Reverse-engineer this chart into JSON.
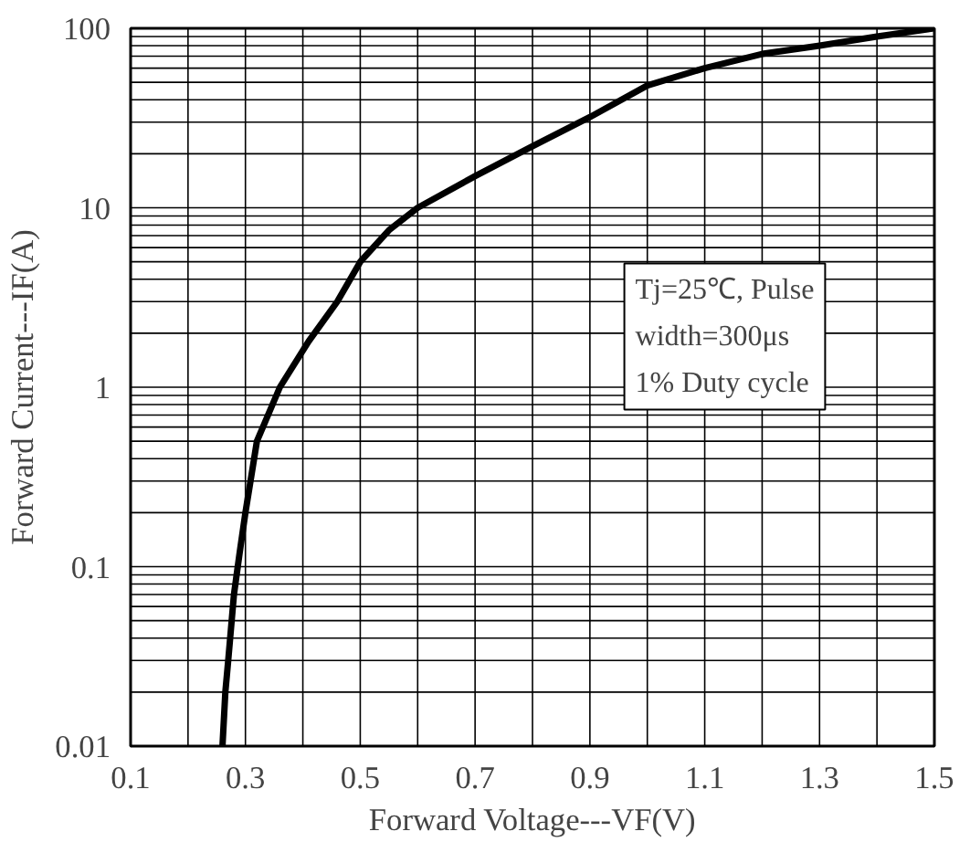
{
  "chart_data": {
    "type": "line",
    "xlabel": "Forward Voltage---VF(V)",
    "ylabel": "Forward Current---IF(A)",
    "x": [
      0.26,
      0.265,
      0.27,
      0.28,
      0.29,
      0.3,
      0.32,
      0.36,
      0.41,
      0.46,
      0.5,
      0.55,
      0.6,
      0.7,
      0.8,
      0.9,
      1.0,
      1.1,
      1.2,
      1.3,
      1.4,
      1.5
    ],
    "series": [
      {
        "color": "#000000",
        "values": [
          0.01,
          0.02,
          0.03,
          0.07,
          0.12,
          0.2,
          0.5,
          1,
          1.8,
          3,
          5,
          7.5,
          10,
          15,
          22,
          32,
          48,
          60,
          72,
          80,
          90,
          100
        ]
      }
    ],
    "xlim": [
      0.1,
      1.5
    ],
    "xticks": [
      0.1,
      {
        "value": 0.2,
        "label": null
      },
      0.3,
      {
        "value": 0.4,
        "label": null
      },
      0.5,
      {
        "value": 0.6,
        "label": null
      },
      0.7,
      {
        "value": 0.8,
        "label": null
      },
      0.9,
      {
        "value": 1.0,
        "label": null
      },
      1.1,
      {
        "value": 1.2,
        "label": null
      },
      1.3,
      {
        "value": 1.4,
        "label": null
      },
      1.5
    ],
    "ylim": [
      0.01,
      100
    ],
    "log": "y",
    "yticks": [
      0.01,
      {
        "value": 0.02,
        "label": null
      },
      {
        "value": 0.03,
        "label": null
      },
      {
        "value": 0.04,
        "label": null
      },
      {
        "value": 0.05,
        "label": null
      },
      {
        "value": 0.06,
        "label": null
      },
      {
        "value": 0.07,
        "label": null
      },
      {
        "value": 0.08,
        "label": null
      },
      {
        "value": 0.09,
        "label": null
      },
      0.1,
      {
        "value": 0.2,
        "label": null
      },
      {
        "value": 0.3,
        "label": null
      },
      {
        "value": 0.4,
        "label": null
      },
      {
        "value": 0.5,
        "label": null
      },
      {
        "value": 0.6,
        "label": null
      },
      {
        "value": 0.7,
        "label": null
      },
      {
        "value": 0.8,
        "label": null
      },
      {
        "value": 0.9,
        "label": null
      },
      1,
      {
        "value": 2,
        "label": null
      },
      {
        "value": 3,
        "label": null
      },
      {
        "value": 4,
        "label": null
      },
      {
        "value": 5,
        "label": null
      },
      {
        "value": 6,
        "label": null
      },
      {
        "value": 7,
        "label": null
      },
      {
        "value": 8,
        "label": null
      },
      {
        "value": 9,
        "label": null
      },
      10,
      {
        "value": 20,
        "label": null
      },
      {
        "value": 30,
        "label": null
      },
      {
        "value": 40,
        "label": null
      },
      {
        "value": 50,
        "label": null
      },
      {
        "value": 60,
        "label": null
      },
      {
        "value": 70,
        "label": null
      },
      {
        "value": 80,
        "label": null
      },
      {
        "value": 90,
        "label": null
      },
      100
    ],
    "grid": true,
    "line_style": "solid",
    "marker": "none",
    "annotations": [
      "Tj=25℃, Pulse\nwidth=300μs\n1% Duty cycle"
    ]
  }
}
